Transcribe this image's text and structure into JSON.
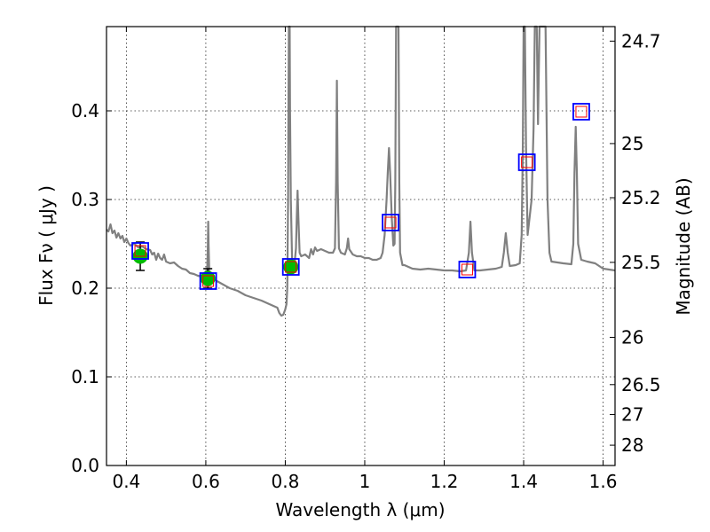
{
  "chart_data": {
    "type": "scatter",
    "xlabel": "Wavelength  λ (μm)",
    "ylabel": "Flux  Fν  ( μJy )",
    "ylabel_right": "Magnitude (AB)",
    "xlim": [
      0.35,
      1.63
    ],
    "ylim": [
      0.0,
      0.495
    ],
    "grid": true,
    "x_ticks": [
      {
        "value": 0.4,
        "label": "0.4"
      },
      {
        "value": 0.6,
        "label": "0.6"
      },
      {
        "value": 0.8,
        "label": "0.8"
      },
      {
        "value": 1.0,
        "label": "1"
      },
      {
        "value": 1.2,
        "label": "1.2"
      },
      {
        "value": 1.4,
        "label": "1.4"
      },
      {
        "value": 1.6,
        "label": "1.6"
      }
    ],
    "y_ticks": [
      {
        "value": 0.0,
        "label": "0.0"
      },
      {
        "value": 0.1,
        "label": "0.1"
      },
      {
        "value": 0.2,
        "label": "0.2"
      },
      {
        "value": 0.3,
        "label": "0.3"
      },
      {
        "value": 0.4,
        "label": "0.4"
      }
    ],
    "right_ticks": [
      {
        "value": 24.7,
        "label": "24.7"
      },
      {
        "value": 25.0,
        "label": "25"
      },
      {
        "value": 25.2,
        "label": "25.2"
      },
      {
        "value": 25.5,
        "label": "25.5"
      },
      {
        "value": 26.0,
        "label": "26"
      },
      {
        "value": 26.5,
        "label": "26.5"
      },
      {
        "value": 27.0,
        "label": "27"
      },
      {
        "value": 28.0,
        "label": "28"
      }
    ],
    "model_spectrum": {
      "color": "#808080",
      "points": [
        [
          0.35,
          0.266
        ],
        [
          0.355,
          0.264
        ],
        [
          0.36,
          0.272
        ],
        [
          0.365,
          0.262
        ],
        [
          0.37,
          0.265
        ],
        [
          0.375,
          0.257
        ],
        [
          0.38,
          0.262
        ],
        [
          0.385,
          0.256
        ],
        [
          0.39,
          0.259
        ],
        [
          0.395,
          0.252
        ],
        [
          0.4,
          0.256
        ],
        [
          0.405,
          0.251
        ],
        [
          0.41,
          0.248
        ],
        [
          0.42,
          0.25
        ],
        [
          0.43,
          0.246
        ],
        [
          0.44,
          0.247
        ],
        [
          0.45,
          0.244
        ],
        [
          0.46,
          0.243
        ],
        [
          0.465,
          0.238
        ],
        [
          0.47,
          0.24
        ],
        [
          0.475,
          0.232
        ],
        [
          0.48,
          0.239
        ],
        [
          0.485,
          0.234
        ],
        [
          0.49,
          0.232
        ],
        [
          0.495,
          0.238
        ],
        [
          0.5,
          0.23
        ],
        [
          0.51,
          0.228
        ],
        [
          0.52,
          0.229
        ],
        [
          0.53,
          0.225
        ],
        [
          0.54,
          0.222
        ],
        [
          0.55,
          0.221
        ],
        [
          0.56,
          0.217
        ],
        [
          0.57,
          0.216
        ],
        [
          0.58,
          0.214
        ],
        [
          0.59,
          0.213
        ],
        [
          0.6,
          0.212
        ],
        [
          0.603,
          0.212
        ],
        [
          0.605,
          0.248
        ],
        [
          0.606,
          0.275
        ],
        [
          0.607,
          0.25
        ],
        [
          0.609,
          0.214
        ],
        [
          0.62,
          0.21
        ],
        [
          0.64,
          0.205
        ],
        [
          0.66,
          0.2
        ],
        [
          0.68,
          0.197
        ],
        [
          0.7,
          0.192
        ],
        [
          0.72,
          0.189
        ],
        [
          0.74,
          0.186
        ],
        [
          0.76,
          0.182
        ],
        [
          0.77,
          0.18
        ],
        [
          0.78,
          0.178
        ],
        [
          0.785,
          0.172
        ],
        [
          0.79,
          0.169
        ],
        [
          0.795,
          0.17
        ],
        [
          0.8,
          0.176
        ],
        [
          0.803,
          0.182
        ],
        [
          0.805,
          0.2
        ],
        [
          0.807,
          0.3
        ],
        [
          0.808,
          0.4
        ],
        [
          0.809,
          0.495
        ],
        [
          0.811,
          0.495
        ],
        [
          0.812,
          0.4
        ],
        [
          0.814,
          0.3
        ],
        [
          0.817,
          0.232
        ],
        [
          0.82,
          0.228
        ],
        [
          0.824,
          0.231
        ],
        [
          0.827,
          0.245
        ],
        [
          0.829,
          0.28
        ],
        [
          0.831,
          0.31
        ],
        [
          0.833,
          0.28
        ],
        [
          0.836,
          0.24
        ],
        [
          0.84,
          0.236
        ],
        [
          0.85,
          0.238
        ],
        [
          0.86,
          0.234
        ],
        [
          0.865,
          0.244
        ],
        [
          0.87,
          0.238
        ],
        [
          0.875,
          0.246
        ],
        [
          0.88,
          0.242
        ],
        [
          0.89,
          0.244
        ],
        [
          0.9,
          0.242
        ],
        [
          0.91,
          0.24
        ],
        [
          0.92,
          0.24
        ],
        [
          0.925,
          0.245
        ],
        [
          0.928,
          0.32
        ],
        [
          0.93,
          0.434
        ],
        [
          0.932,
          0.32
        ],
        [
          0.935,
          0.245
        ],
        [
          0.94,
          0.24
        ],
        [
          0.95,
          0.238
        ],
        [
          0.955,
          0.245
        ],
        [
          0.958,
          0.256
        ],
        [
          0.961,
          0.244
        ],
        [
          0.97,
          0.238
        ],
        [
          0.98,
          0.236
        ],
        [
          0.99,
          0.236
        ],
        [
          1.0,
          0.234
        ],
        [
          1.01,
          0.234
        ],
        [
          1.02,
          0.232
        ],
        [
          1.03,
          0.232
        ],
        [
          1.04,
          0.234
        ],
        [
          1.045,
          0.24
        ],
        [
          1.05,
          0.26
        ],
        [
          1.055,
          0.3
        ],
        [
          1.058,
          0.33
        ],
        [
          1.061,
          0.358
        ],
        [
          1.064,
          0.33
        ],
        [
          1.068,
          0.28
        ],
        [
          1.072,
          0.248
        ],
        [
          1.075,
          0.25
        ],
        [
          1.077,
          0.32
        ],
        [
          1.079,
          0.495
        ],
        [
          1.085,
          0.495
        ],
        [
          1.087,
          0.32
        ],
        [
          1.089,
          0.24
        ],
        [
          1.095,
          0.226
        ],
        [
          1.1,
          0.226
        ],
        [
          1.12,
          0.222
        ],
        [
          1.14,
          0.221
        ],
        [
          1.16,
          0.222
        ],
        [
          1.18,
          0.221
        ],
        [
          1.2,
          0.22
        ],
        [
          1.22,
          0.22
        ],
        [
          1.24,
          0.219
        ],
        [
          1.255,
          0.22
        ],
        [
          1.262,
          0.24
        ],
        [
          1.266,
          0.275
        ],
        [
          1.27,
          0.24
        ],
        [
          1.276,
          0.22
        ],
        [
          1.29,
          0.22
        ],
        [
          1.31,
          0.221
        ],
        [
          1.33,
          0.222
        ],
        [
          1.345,
          0.224
        ],
        [
          1.35,
          0.24
        ],
        [
          1.355,
          0.262
        ],
        [
          1.36,
          0.24
        ],
        [
          1.365,
          0.225
        ],
        [
          1.38,
          0.226
        ],
        [
          1.39,
          0.228
        ],
        [
          1.395,
          0.26
        ],
        [
          1.398,
          0.36
        ],
        [
          1.4,
          0.495
        ],
        [
          1.403,
          0.495
        ],
        [
          1.406,
          0.36
        ],
        [
          1.41,
          0.26
        ],
        [
          1.42,
          0.3
        ],
        [
          1.425,
          0.38
        ],
        [
          1.428,
          0.495
        ],
        [
          1.433,
          0.495
        ],
        [
          1.436,
          0.385
        ],
        [
          1.44,
          0.495
        ],
        [
          1.455,
          0.495
        ],
        [
          1.46,
          0.3
        ],
        [
          1.465,
          0.24
        ],
        [
          1.47,
          0.23
        ],
        [
          1.5,
          0.228
        ],
        [
          1.52,
          0.227
        ],
        [
          1.525,
          0.25
        ],
        [
          1.528,
          0.33
        ],
        [
          1.531,
          0.382
        ],
        [
          1.534,
          0.33
        ],
        [
          1.537,
          0.25
        ],
        [
          1.545,
          0.232
        ],
        [
          1.56,
          0.23
        ],
        [
          1.58,
          0.228
        ],
        [
          1.6,
          0.222
        ],
        [
          1.63,
          0.22
        ]
      ]
    },
    "observed_points": {
      "color": "#00bb00",
      "errorbar_color": "#000000",
      "points": [
        {
          "x": 0.435,
          "y": 0.236,
          "yerr": 0.016
        },
        {
          "x": 0.605,
          "y": 0.211,
          "yerr": 0.011
        },
        {
          "x": 0.814,
          "y": 0.224,
          "yerr": 0.0
        }
      ]
    },
    "synthetic_photometry": {
      "outer_color": "#0000ff",
      "inner_color": "#ff0000",
      "points": [
        {
          "x": 0.435,
          "y": 0.242
        },
        {
          "x": 0.606,
          "y": 0.208
        },
        {
          "x": 0.814,
          "y": 0.224
        },
        {
          "x": 1.065,
          "y": 0.274
        },
        {
          "x": 1.258,
          "y": 0.221
        },
        {
          "x": 1.408,
          "y": 0.342
        },
        {
          "x": 1.545,
          "y": 0.399
        }
      ]
    }
  }
}
